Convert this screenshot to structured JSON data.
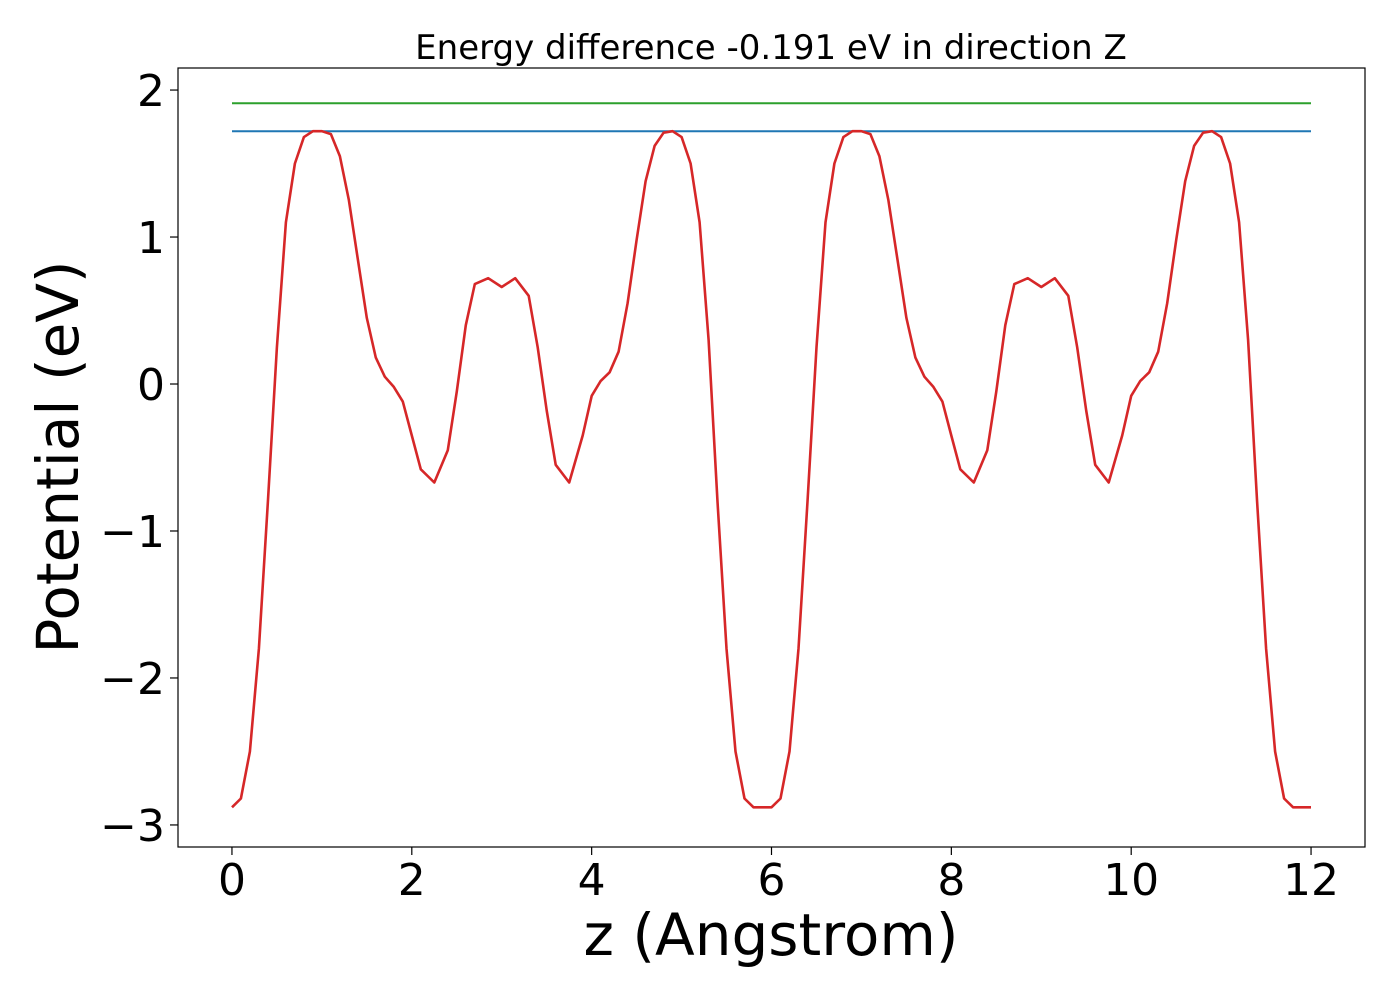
{
  "chart_data": {
    "type": "line",
    "title": "Energy difference -0.191 eV in direction Z",
    "xlabel": "z (Angstrom)",
    "ylabel": "Potential (eV)",
    "xlim": [
      -0.6,
      12.6
    ],
    "ylim": [
      -3.15,
      2.15
    ],
    "grid": false,
    "xticks": [
      0,
      2,
      4,
      6,
      8,
      10,
      12
    ],
    "xtick_labels": [
      "0",
      "2",
      "4",
      "6",
      "8",
      "10",
      "12"
    ],
    "yticks": [
      2,
      1,
      0,
      -1,
      -2,
      -3
    ],
    "ytick_labels": [
      "2",
      "1",
      "0",
      "−1",
      "−2",
      "−3"
    ],
    "series": [
      {
        "color": "#2ca02c",
        "x": [
          0,
          12
        ],
        "y": [
          1.91,
          1.91
        ]
      },
      {
        "color": "#1f77b4",
        "x": [
          0,
          12
        ],
        "y": [
          1.72,
          1.72
        ]
      },
      {
        "color": "#d62728",
        "x": [
          0,
          0.1,
          0.2,
          0.3,
          0.4,
          0.5,
          0.6,
          0.7,
          0.8,
          0.9,
          1.0,
          1.1,
          1.2,
          1.3,
          1.4,
          1.5,
          1.6,
          1.7,
          1.8,
          1.9,
          2.0,
          2.1,
          2.25,
          2.4,
          2.5,
          2.6,
          2.7,
          2.85,
          3.0,
          3.15,
          3.3,
          3.4,
          3.5,
          3.6,
          3.75,
          3.9,
          4.0,
          4.1,
          4.2,
          4.3,
          4.4,
          4.5,
          4.6,
          4.7,
          4.8,
          4.9,
          5.0,
          5.1,
          5.2,
          5.3,
          5.4,
          5.5,
          5.6,
          5.7,
          5.8,
          5.9,
          6.0,
          6.1,
          6.2,
          6.3,
          6.4,
          6.5,
          6.6,
          6.7,
          6.8,
          6.9,
          7.0,
          7.1,
          7.2,
          7.3,
          7.4,
          7.5,
          7.6,
          7.7,
          7.8,
          7.9,
          8.0,
          8.1,
          8.25,
          8.4,
          8.5,
          8.6,
          8.7,
          8.85,
          9.0,
          9.15,
          9.3,
          9.4,
          9.5,
          9.6,
          9.75,
          9.9,
          10.0,
          10.1,
          10.2,
          10.3,
          10.4,
          10.5,
          10.6,
          10.7,
          10.8,
          10.9,
          11.0,
          11.1,
          11.2,
          11.3,
          11.4,
          11.5,
          11.6,
          11.7,
          11.8,
          11.9,
          12.0
        ],
        "y": [
          -2.88,
          -2.82,
          -2.5,
          -1.8,
          -0.8,
          0.25,
          1.1,
          1.5,
          1.68,
          1.72,
          1.72,
          1.7,
          1.55,
          1.25,
          0.85,
          0.45,
          0.18,
          0.05,
          -0.02,
          -0.12,
          -0.35,
          -0.58,
          -0.67,
          -0.45,
          -0.05,
          0.4,
          0.68,
          0.72,
          0.66,
          0.72,
          0.6,
          0.25,
          -0.18,
          -0.55,
          -0.67,
          -0.35,
          -0.08,
          0.02,
          0.08,
          0.22,
          0.55,
          0.98,
          1.38,
          1.62,
          1.71,
          1.72,
          1.68,
          1.5,
          1.1,
          0.3,
          -0.8,
          -1.8,
          -2.5,
          -2.82,
          -2.88,
          -2.88,
          -2.88,
          -2.82,
          -2.5,
          -1.8,
          -0.8,
          0.25,
          1.1,
          1.5,
          1.68,
          1.72,
          1.72,
          1.7,
          1.55,
          1.25,
          0.85,
          0.45,
          0.18,
          0.05,
          -0.02,
          -0.12,
          -0.35,
          -0.58,
          -0.67,
          -0.45,
          -0.05,
          0.4,
          0.68,
          0.72,
          0.66,
          0.72,
          0.6,
          0.25,
          -0.18,
          -0.55,
          -0.67,
          -0.35,
          -0.08,
          0.02,
          0.08,
          0.22,
          0.55,
          0.98,
          1.38,
          1.62,
          1.71,
          1.72,
          1.68,
          1.5,
          1.1,
          0.3,
          -0.8,
          -1.8,
          -2.5,
          -2.82,
          -2.88,
          -2.88,
          -2.88
        ]
      }
    ]
  }
}
